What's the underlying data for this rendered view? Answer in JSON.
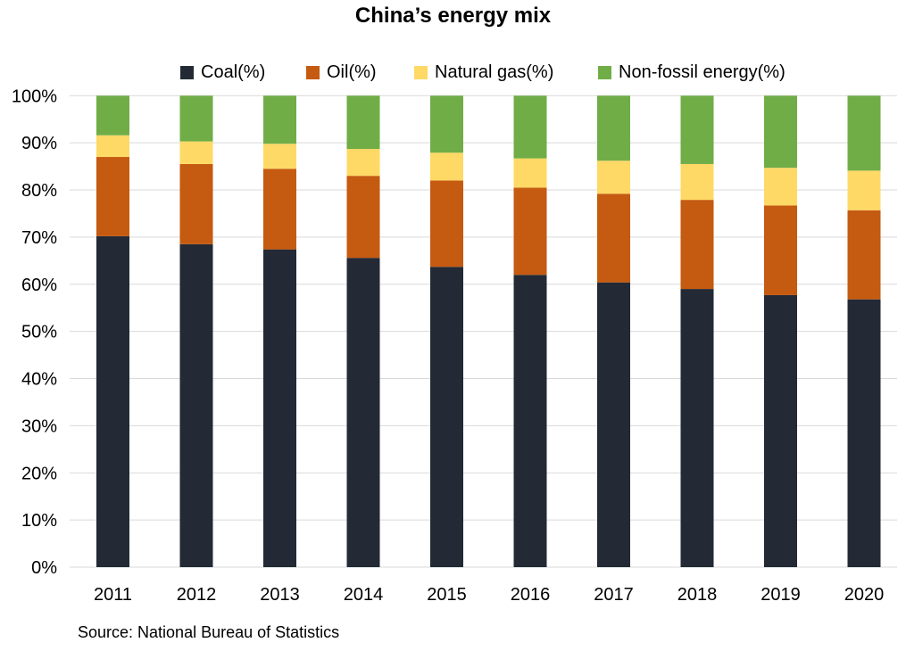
{
  "chart_data": {
    "type": "bar",
    "stacked": true,
    "title": "China’s energy mix",
    "xlabel": "",
    "ylabel": "",
    "ylim": [
      0,
      100
    ],
    "y_tick_labels": [
      "0%",
      "10%",
      "20%",
      "30%",
      "40%",
      "50%",
      "60%",
      "70%",
      "80%",
      "90%",
      "100%"
    ],
    "y_ticks": [
      0,
      10,
      20,
      30,
      40,
      50,
      60,
      70,
      80,
      90,
      100
    ],
    "grid": true,
    "legend_position": "top",
    "categories": [
      "2011",
      "2012",
      "2013",
      "2014",
      "2015",
      "2016",
      "2017",
      "2018",
      "2019",
      "2020"
    ],
    "series": [
      {
        "name": "Coal(%)",
        "color": "#232A35",
        "values": [
          70.2,
          68.5,
          67.4,
          65.6,
          63.7,
          62.0,
          60.4,
          59.0,
          57.7,
          56.8
        ]
      },
      {
        "name": "Oil(%)",
        "color": "#C55A11",
        "values": [
          16.8,
          17.0,
          17.1,
          17.4,
          18.3,
          18.5,
          18.8,
          18.9,
          19.0,
          18.9
        ]
      },
      {
        "name": "Natural gas(%)",
        "color": "#FFD966",
        "values": [
          4.6,
          4.8,
          5.3,
          5.7,
          5.9,
          6.2,
          7.0,
          7.6,
          8.0,
          8.4
        ]
      },
      {
        "name": "Non-fossil energy(%)",
        "color": "#70AD47",
        "values": [
          8.4,
          9.7,
          10.2,
          11.3,
          12.1,
          13.3,
          13.8,
          14.5,
          15.3,
          15.9
        ]
      }
    ],
    "source": "Source: National Bureau of Statistics"
  }
}
